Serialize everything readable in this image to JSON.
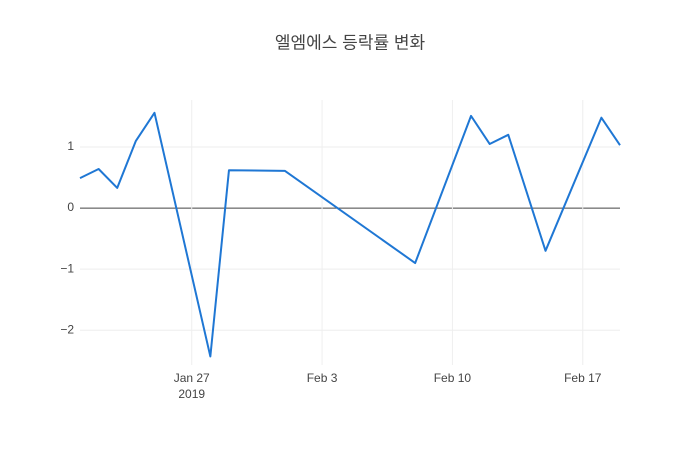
{
  "chart_data": {
    "type": "line",
    "title": "엘엠에스 등락률 변화",
    "x": [
      "2019-01-21",
      "2019-01-22",
      "2019-01-23",
      "2019-01-24",
      "2019-01-25",
      "2019-01-28",
      "2019-01-29",
      "2019-02-01",
      "2019-02-08",
      "2019-02-11",
      "2019-02-12",
      "2019-02-13",
      "2019-02-15",
      "2019-02-18",
      "2019-02-19"
    ],
    "series": [
      {
        "name": "등락률",
        "color": "#1f77d4",
        "values": [
          0.49,
          0.64,
          0.33,
          1.1,
          1.56,
          -2.43,
          0.62,
          0.61,
          -0.9,
          1.51,
          1.05,
          1.2,
          -0.7,
          1.48,
          1.03
        ]
      }
    ],
    "xlim": [
      "2019-01-21",
      "2019-02-19"
    ],
    "xticks": [
      {
        "value": "2019-01-27",
        "label": "Jan 27"
      },
      {
        "value": "2019-02-03",
        "label": "Feb 3"
      },
      {
        "value": "2019-02-10",
        "label": "Feb 10"
      },
      {
        "value": "2019-02-17",
        "label": "Feb 17"
      }
    ],
    "x_year_label": "2019",
    "ylim": [
      -2.57,
      1.77
    ],
    "yticks": [
      {
        "value": -2,
        "label": "−2"
      },
      {
        "value": -1,
        "label": "−1"
      },
      0,
      1
    ],
    "grid": true
  }
}
